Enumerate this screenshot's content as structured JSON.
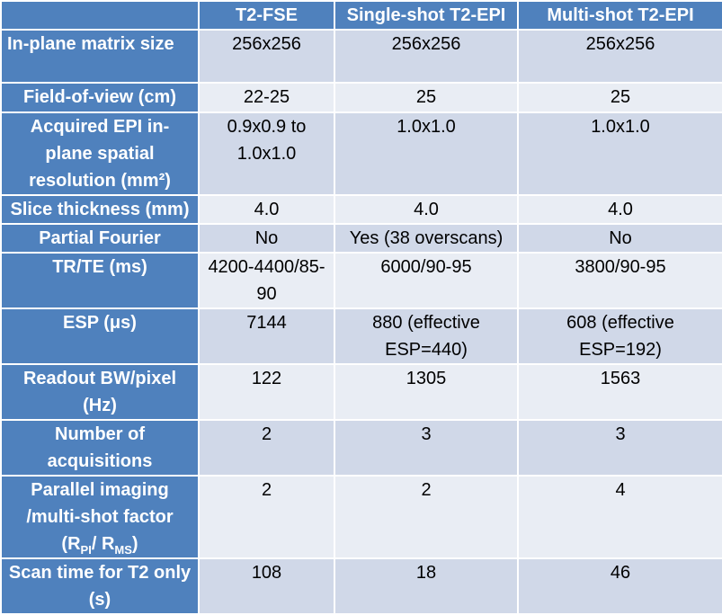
{
  "table": {
    "headers": [
      "",
      "T2-FSE",
      "Single-shot T2-EPI",
      "Multi-shot T2-EPI"
    ],
    "rows": [
      {
        "label": "In-plane matrix size",
        "cells": [
          "256x256",
          "256x256",
          "256x256"
        ]
      },
      {
        "label": "Field-of-view (cm)",
        "cells": [
          "22-25",
          "25",
          "25"
        ]
      },
      {
        "label": "Acquired EPI in-plane spatial resolution (mm²)",
        "cells": [
          "0.9x0.9 to 1.0x1.0",
          "1.0x1.0",
          "1.0x1.0"
        ]
      },
      {
        "label": "Slice thickness (mm)",
        "cells": [
          "4.0",
          "4.0",
          "4.0"
        ]
      },
      {
        "label": "Partial Fourier",
        "cells": [
          "No",
          "Yes (38 overscans)",
          "No"
        ]
      },
      {
        "label": "TR/TE (ms)",
        "cells": [
          "4200-4400/85-90",
          "6000/90-95",
          "3800/90-95"
        ]
      },
      {
        "label": "ESP (μs)",
        "cells": [
          "7144",
          "880 (effective ESP=440)",
          "608 (effective ESP=192)"
        ]
      },
      {
        "label": "Readout BW/pixel (Hz)",
        "cells": [
          "122",
          "1305",
          "1563"
        ]
      },
      {
        "label": "Number of acquisitions",
        "cells": [
          "2",
          "3",
          "3"
        ]
      },
      {
        "label": "Parallel imaging /multi-shot factor",
        "label_suffix_a": "(R",
        "label_sub_a": "PI",
        "label_suffix_b": "/ R",
        "label_sub_b": "MS",
        "label_suffix_c": ")",
        "cells": [
          "2",
          "2",
          "4"
        ]
      },
      {
        "label": "Scan time for T2 only (s)",
        "cells": [
          "108",
          "18",
          "46"
        ]
      }
    ]
  },
  "colors": {
    "header": "#4f81bd",
    "row_odd": "#d0d8e8",
    "row_even": "#e9edf4",
    "border": "#ffffff"
  }
}
